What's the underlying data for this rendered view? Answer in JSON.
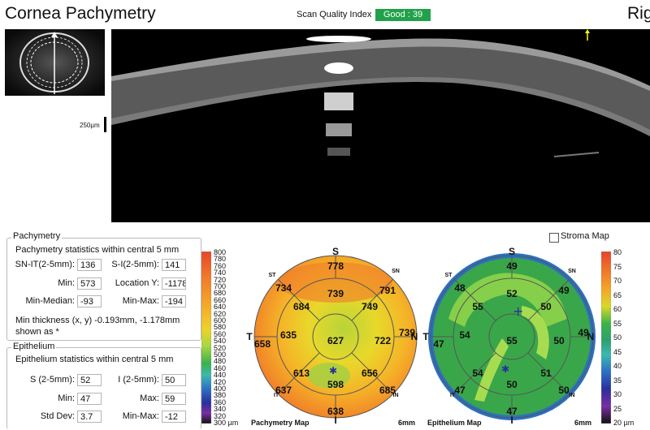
{
  "header": {
    "title": "Cornea Pachymetry",
    "right_title": "Rig",
    "scan_quality_label": "Scan Quality Index",
    "scan_quality_value": "Good : 39",
    "scan_quality_color": "#21a24a"
  },
  "oct_image": {
    "scale_label": "250µm"
  },
  "pachymetry": {
    "section_title": "Pachymetry",
    "subtitle": "Pachymetry statistics within central 5 mm",
    "sn_it_label": "SN-IT(2-5mm):",
    "sn_it_value": "136",
    "s_i_label": "S-I(2-5mm):",
    "s_i_value": "141",
    "min_label": "Min:",
    "min_value": "573",
    "locy_label": "Location Y:",
    "locy_value": "-1178",
    "min_median_label": "Min-Median:",
    "min_median_value": "-93",
    "min_max_label": "Min-Max:",
    "min_max_value": "-194",
    "note_line1": "Min thickness (x, y) -0.193mm, -1.178mm",
    "note_line2": "shown as *"
  },
  "epithelium": {
    "section_title": "Epithelium",
    "subtitle": "Epithelium statistics within central 5 mm",
    "s_label": "S (2-5mm):",
    "s_value": "52",
    "i_label": "I (2-5mm):",
    "i_value": "50",
    "min_label": "Min:",
    "min_value": "47",
    "max_label": "Max:",
    "max_value": "59",
    "std_label": "Std Dev:",
    "std_value": "3.7",
    "min_max_label": "Min-Max:",
    "min_max_value": "-12"
  },
  "stroma_map": {
    "label": "Stroma Map",
    "checked": false
  },
  "pachy_map": {
    "title": "Pachymetry Map",
    "size": "6mm",
    "scale_ticks": [
      "800",
      "780",
      "760",
      "740",
      "720",
      "700",
      "680",
      "660",
      "640",
      "620",
      "600",
      "580",
      "560",
      "540",
      "520",
      "500",
      "480",
      "460",
      "440",
      "420",
      "400",
      "380",
      "360",
      "340",
      "320",
      "300 µm"
    ],
    "labels": {
      "s": "S",
      "i": "I",
      "t": "T",
      "n": "N",
      "st": "ST",
      "sn": "SN",
      "it": "IT",
      "in": "IN"
    },
    "values": {
      "center": "627",
      "inner_s": "739",
      "inner_sn": "749",
      "inner_n": "722",
      "inner_in": "656",
      "inner_i": "598",
      "inner_it": "613",
      "inner_t": "635",
      "inner_st": "684",
      "outer_s": "778",
      "outer_sn": "791",
      "outer_n": "739",
      "outer_in": "685",
      "outer_i": "638",
      "outer_it": "637",
      "outer_t": "658",
      "outer_st": "734"
    }
  },
  "epi_map": {
    "title": "Epithelium Map",
    "size": "6mm",
    "scale_ticks": [
      "80",
      "75",
      "70",
      "65",
      "60",
      "55",
      "50",
      "45",
      "40",
      "35",
      "30",
      "25",
      "20 µm"
    ],
    "labels": {
      "s": "S",
      "i": "I",
      "t": "T",
      "n": "N",
      "st": "ST",
      "sn": "SN",
      "it": "IT",
      "in": "IN"
    },
    "values": {
      "center": "55",
      "inner_s": "52",
      "inner_sn": "50",
      "inner_n": "50",
      "inner_in": "51",
      "inner_i": "50",
      "inner_it": "54",
      "inner_t": "54",
      "inner_st": "55",
      "outer_s": "49",
      "outer_sn": "49",
      "outer_n": "49",
      "outer_in": "50",
      "outer_i": "47",
      "outer_it": "47",
      "outer_t": "47",
      "outer_st": "48"
    }
  }
}
